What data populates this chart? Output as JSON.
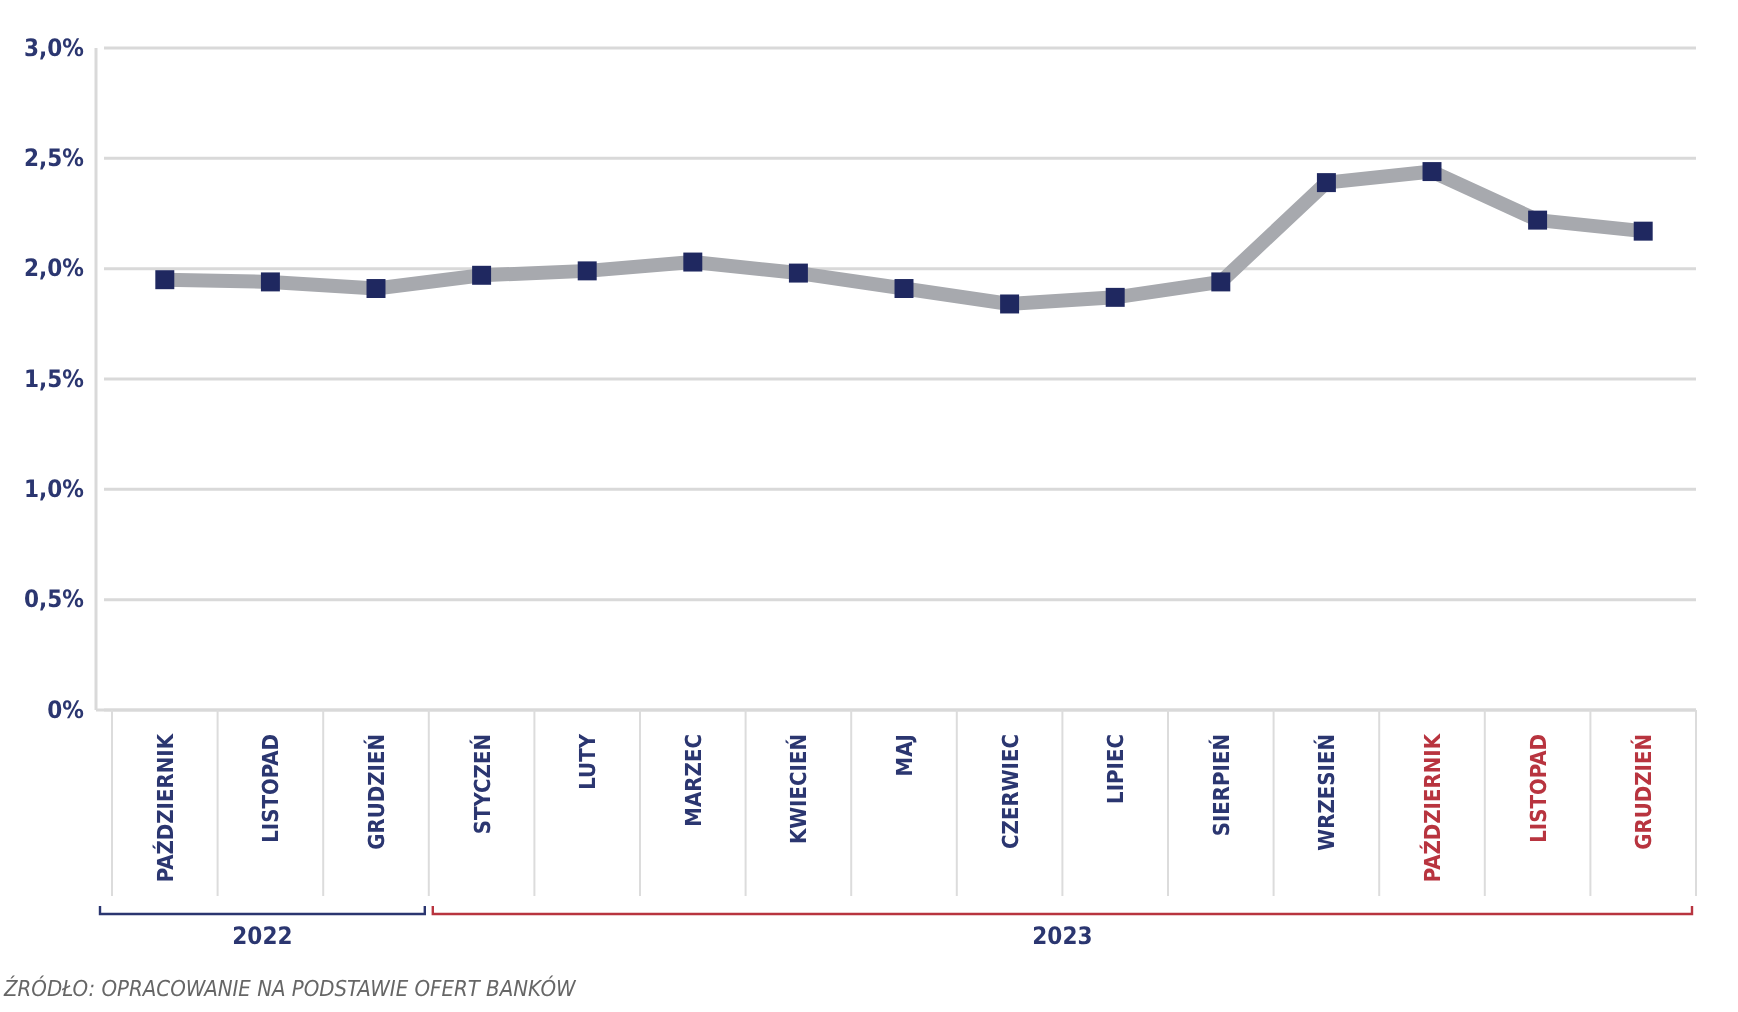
{
  "chart_data": {
    "type": "line",
    "categories": [
      "PAŹDZIERNIK",
      "LISTOPAD",
      "GRUDZIEŃ",
      "STYCZEŃ",
      "LUTY",
      "MARZEC",
      "KWIECIEŃ",
      "MAJ",
      "CZERWIEC",
      "LIPIEC",
      "SIERPIEŃ",
      "WRZESIEŃ",
      "PAŹDZIERNIK",
      "LISTOPAD",
      "GRUDZIEŃ"
    ],
    "series": [
      {
        "color": "#a7a9ae",
        "values": [
          1.95,
          1.94,
          1.91,
          1.97,
          1.99,
          2.03,
          1.98,
          1.91,
          1.84,
          1.87,
          1.94,
          2.39,
          2.44,
          2.22,
          2.17
        ]
      }
    ],
    "ylim": [
      0,
      3
    ],
    "yticks": [
      {
        "value": 0,
        "label": "0%"
      },
      {
        "value": 0.5,
        "label": "0,5%"
      },
      {
        "value": 1,
        "label": "1,0%"
      },
      {
        "value": 1.5,
        "label": "1,5%"
      },
      {
        "value": 2,
        "label": "2,0%"
      },
      {
        "value": 2.5,
        "label": "2,5%"
      },
      {
        "value": 3,
        "label": "3,0%"
      }
    ],
    "grid": "y",
    "marker": "square",
    "line_style": "solid",
    "annotations": [
      "2022",
      "2023",
      "ŹRÓDŁO: OPRACOWANIE NA PODSTAWIE OFERT BANKÓW"
    ]
  }
}
